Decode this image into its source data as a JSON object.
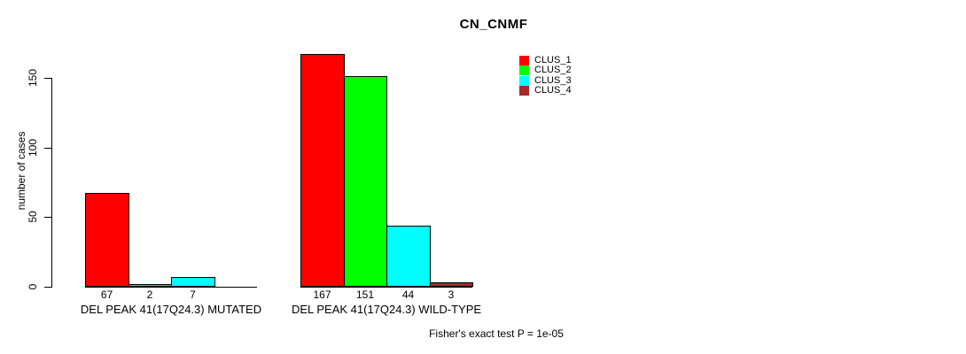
{
  "chart_data": {
    "type": "bar",
    "title": "CN_CNMF",
    "ylabel": "number of cases",
    "xlabel": "",
    "yticks": [
      0,
      50,
      100,
      150
    ],
    "ylim": [
      0,
      175
    ],
    "grid": false,
    "legend_position": "top-right",
    "series_names": [
      "CLUS_1",
      "CLUS_2",
      "CLUS_3",
      "CLUS_4"
    ],
    "series_colors": [
      "#ff0000",
      "#00ff00",
      "#00ffff",
      "#a52a2a"
    ],
    "groups": [
      {
        "label": "DEL PEAK 41(17Q24.3) MUTATED",
        "values": [
          67,
          2,
          7,
          0
        ],
        "bar_labels": [
          "67",
          "2",
          "7",
          ""
        ]
      },
      {
        "label": "DEL PEAK 41(17Q24.3) WILD-TYPE",
        "values": [
          167,
          151,
          44,
          3
        ],
        "bar_labels": [
          "167",
          "151",
          "44",
          "3"
        ]
      }
    ],
    "annotation": "Fisher's exact test P = 1e-05"
  }
}
